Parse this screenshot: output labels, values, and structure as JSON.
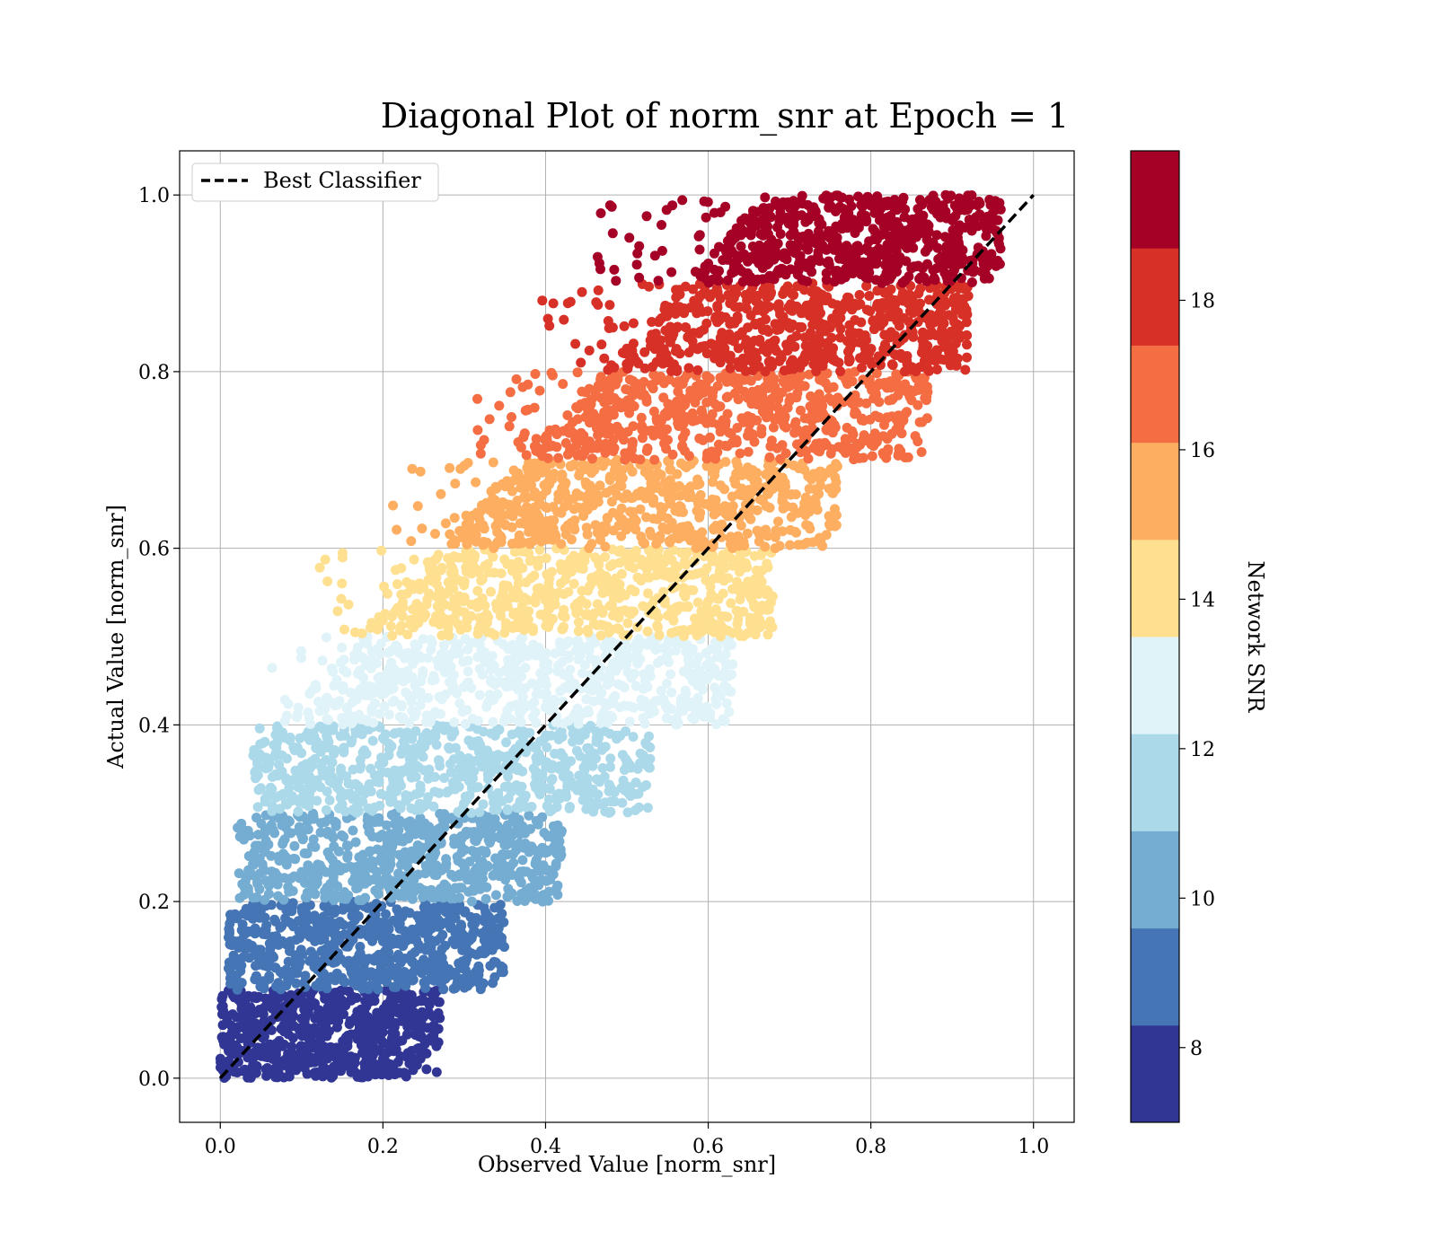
{
  "chart_data": {
    "type": "scatter",
    "title": "Diagonal Plot of norm_snr at Epoch = 1",
    "xlabel": "Observed Value [norm_snr]",
    "ylabel": "Actual Value [norm_snr]",
    "xlim": [
      -0.05,
      1.05
    ],
    "ylim": [
      -0.05,
      1.05
    ],
    "xticks": [
      "0.0",
      "0.2",
      "0.4",
      "0.6",
      "0.8",
      "1.0"
    ],
    "yticks": [
      "0.0",
      "0.2",
      "0.4",
      "0.6",
      "0.8",
      "1.0"
    ],
    "grid": true,
    "legend": {
      "placement": "top-left",
      "entries": [
        "Best Classifier"
      ]
    },
    "reference_line": {
      "name": "Best Classifier",
      "style": "dashed",
      "color": "#000000",
      "x": [
        0.0,
        1.0
      ],
      "y": [
        0.0,
        1.0
      ]
    },
    "colorbar": {
      "label": "Network SNR",
      "range": [
        7,
        20
      ],
      "ticks": [
        "8",
        "10",
        "12",
        "14",
        "16",
        "18"
      ],
      "colors": [
        "#313695",
        "#4575b4",
        "#74add1",
        "#abd9e9",
        "#e0f3f8",
        "#fee090",
        "#fdae61",
        "#f46d43",
        "#d73027",
        "#a50026"
      ]
    },
    "series": [
      {
        "snr_band": [
          7.0,
          8.3
        ],
        "color": "#313695",
        "y_range": [
          0.0,
          0.1
        ],
        "x_range": [
          0.0,
          0.27
        ]
      },
      {
        "snr_band": [
          8.3,
          9.6
        ],
        "color": "#4575b4",
        "y_range": [
          0.1,
          0.2
        ],
        "x_range": [
          0.01,
          0.35
        ]
      },
      {
        "snr_band": [
          9.6,
          10.9
        ],
        "color": "#74add1",
        "y_range": [
          0.2,
          0.3
        ],
        "x_range": [
          0.02,
          0.42
        ]
      },
      {
        "snr_band": [
          10.9,
          12.2
        ],
        "color": "#abd9e9",
        "y_range": [
          0.3,
          0.4
        ],
        "x_range": [
          0.04,
          0.53
        ]
      },
      {
        "snr_band": [
          12.2,
          13.5
        ],
        "color": "#e0f3f8",
        "y_range": [
          0.4,
          0.5
        ],
        "x_range": [
          0.06,
          0.63
        ]
      },
      {
        "snr_band": [
          13.5,
          14.8
        ],
        "color": "#fee090",
        "y_range": [
          0.5,
          0.6
        ],
        "x_range": [
          0.12,
          0.68
        ]
      },
      {
        "snr_band": [
          14.8,
          16.1
        ],
        "color": "#fdae61",
        "y_range": [
          0.6,
          0.7
        ],
        "x_range": [
          0.2,
          0.76
        ]
      },
      {
        "snr_band": [
          16.1,
          17.4
        ],
        "color": "#f46d43",
        "y_range": [
          0.7,
          0.8
        ],
        "x_range": [
          0.3,
          0.87
        ]
      },
      {
        "snr_band": [
          17.4,
          18.7
        ],
        "color": "#d73027",
        "y_range": [
          0.8,
          0.9
        ],
        "x_range": [
          0.39,
          0.92
        ]
      },
      {
        "snr_band": [
          18.7,
          20.0
        ],
        "color": "#a50026",
        "y_range": [
          0.9,
          1.0
        ],
        "x_range": [
          0.46,
          0.96
        ]
      }
    ]
  }
}
